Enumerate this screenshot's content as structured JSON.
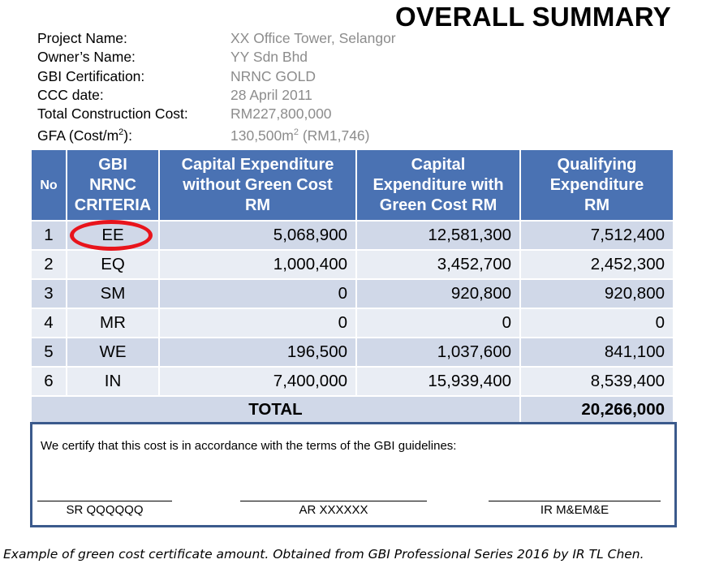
{
  "title": "OVERALL SUMMARY",
  "info": [
    {
      "label": "Project Name:",
      "value": "XX Office Tower, Selangor"
    },
    {
      "label": "Owner’s Name:",
      "value": "YY Sdn Bhd"
    },
    {
      "label": "GBI Certification:",
      "value": "NRNC GOLD"
    },
    {
      "label": "CCC date:",
      "value": "28 April 2011"
    },
    {
      "label": "Total Construction Cost:",
      "value": "RM227,800,000"
    }
  ],
  "gfa": {
    "label_prefix": "GFA (Cost/m",
    "label_sup": "2",
    "label_suffix": "):",
    "value_prefix": "130,500m",
    "value_sup": "2",
    "value_suffix": " (RM1,746)"
  },
  "table": {
    "headers": {
      "no": "No",
      "criteria": [
        "GBI",
        "NRNC",
        "CRITERIA"
      ],
      "capex_without": [
        "Capital Expenditure",
        "without Green Cost",
        "RM"
      ],
      "capex_with": [
        "Capital",
        "Expenditure with",
        "Green Cost RM"
      ],
      "qualifying": [
        "Qualifying",
        "Expenditure",
        "RM"
      ]
    },
    "rows": [
      {
        "no": "1",
        "criteria": "EE",
        "without": "5,068,900",
        "with": "12,581,300",
        "qualifying": "7,512,400"
      },
      {
        "no": "2",
        "criteria": "EQ",
        "without": "1,000,400",
        "with": "3,452,700",
        "qualifying": "2,452,300"
      },
      {
        "no": "3",
        "criteria": "SM",
        "without": "0",
        "with": "920,800",
        "qualifying": "920,800"
      },
      {
        "no": "4",
        "criteria": "MR",
        "without": "0",
        "with": "0",
        "qualifying": "0"
      },
      {
        "no": "5",
        "criteria": "WE",
        "without": "196,500",
        "with": "1,037,600",
        "qualifying": "841,100"
      },
      {
        "no": "6",
        "criteria": "IN",
        "without": "7,400,000",
        "with": "15,939,400",
        "qualifying": "8,539,400"
      }
    ],
    "total_label": "TOTAL",
    "total_value": "20,266,000"
  },
  "highlight_color": "#e8141c",
  "header_color": "#4a72b3",
  "certification": {
    "statement": "We certify that this cost is in accordance with the terms of the GBI guidelines:",
    "signatories": [
      "SR QQQQQQ",
      "AR XXXXXX",
      "IR M&EM&E"
    ]
  },
  "caption": "Example of green cost certificate amount. Obtained from GBI Professional Series 2016 by IR TL Chen."
}
